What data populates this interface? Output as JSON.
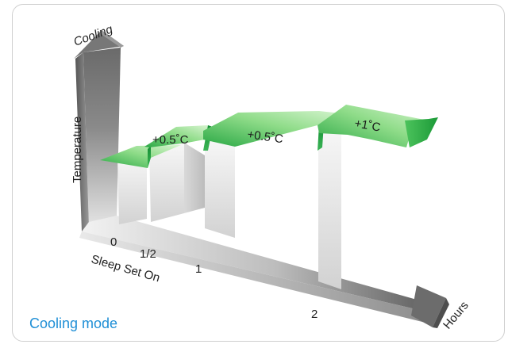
{
  "y_axis": {
    "title": "Temperature",
    "direction_label": "Cooling"
  },
  "x_axis": {
    "title": "Hours",
    "ticks": [
      "0",
      "1/2",
      "1",
      "2"
    ],
    "start_label": "Sleep Set On"
  },
  "steps": [
    "+0.5˚C",
    "+0.5˚C",
    "+1˚C"
  ],
  "mode_label": "Cooling mode",
  "colors": {
    "step_green_dark": "#1a9a3a",
    "step_green_light": "#c8eec0",
    "axis_grey_dark": "#555555",
    "axis_grey_light": "#dddddd",
    "mode_label_blue": "#1f8fd6"
  }
}
